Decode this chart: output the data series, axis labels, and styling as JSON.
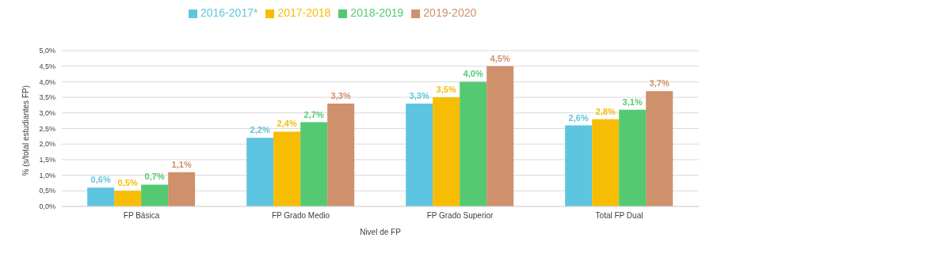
{
  "chart_data": {
    "type": "bar",
    "xlabel": "Nivel de FP",
    "ylabel": "% (s/total estudiantes FP)",
    "categories": [
      "FP Básica",
      "FP Grado Medio",
      "FP Grado Superior",
      "Total FP Dual"
    ],
    "series": [
      {
        "name": "2016-2017*",
        "color": "#5ec5e0",
        "values": [
          0.6,
          2.2,
          3.3,
          2.6
        ],
        "value_labels": [
          "0,6%",
          "2,2%",
          "3,3%",
          "2,6%"
        ]
      },
      {
        "name": "2017-2018",
        "color": "#f7bd05",
        "values": [
          0.5,
          2.4,
          3.5,
          2.8
        ],
        "value_labels": [
          "0,5%",
          "2,4%",
          "3,5%",
          "2,8%"
        ]
      },
      {
        "name": "2018-2019",
        "color": "#55c972",
        "values": [
          0.7,
          2.7,
          4.0,
          3.1
        ],
        "value_labels": [
          "0,7%",
          "2,7%",
          "4,0%",
          "3,1%"
        ]
      },
      {
        "name": "2019-2020",
        "color": "#cf906c",
        "values": [
          1.1,
          3.3,
          4.5,
          3.7
        ],
        "value_labels": [
          "1,1%",
          "3,3%",
          "4,5%",
          "3,7%"
        ]
      }
    ],
    "ylim": [
      0,
      5
    ],
    "yticks": [
      {
        "value": 0,
        "label": "0,0%"
      },
      {
        "value": 0.5,
        "label": "0,5%"
      },
      {
        "value": 1,
        "label": "1,0%"
      },
      {
        "value": 1.5,
        "label": "1,5%"
      },
      {
        "value": 2,
        "label": "2,0%"
      },
      {
        "value": 2.5,
        "label": "2,5%"
      },
      {
        "value": 3,
        "label": "3,0%"
      },
      {
        "value": 3.5,
        "label": "3,5%"
      },
      {
        "value": 4,
        "label": "4,0%"
      },
      {
        "value": 4.5,
        "label": "4,5%"
      },
      {
        "value": 5,
        "label": "5,0%"
      }
    ],
    "grid": "y",
    "legend": "top"
  }
}
